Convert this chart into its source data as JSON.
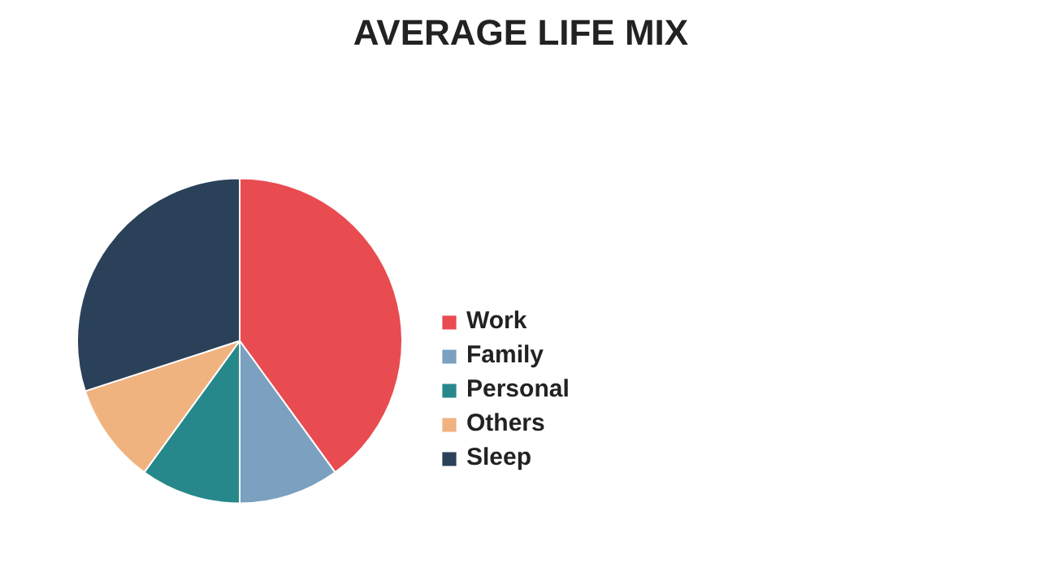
{
  "chart_data": {
    "type": "pie",
    "title": "AVERAGE LIFE MIX",
    "categories": [
      "Work",
      "Family",
      "Personal",
      "Others",
      "Sleep"
    ],
    "values": [
      40,
      10,
      10,
      10,
      30
    ],
    "colors": [
      "#e84c51",
      "#7ba0c0",
      "#26888a",
      "#f0b27f",
      "#2a4159"
    ],
    "legend": "right"
  }
}
